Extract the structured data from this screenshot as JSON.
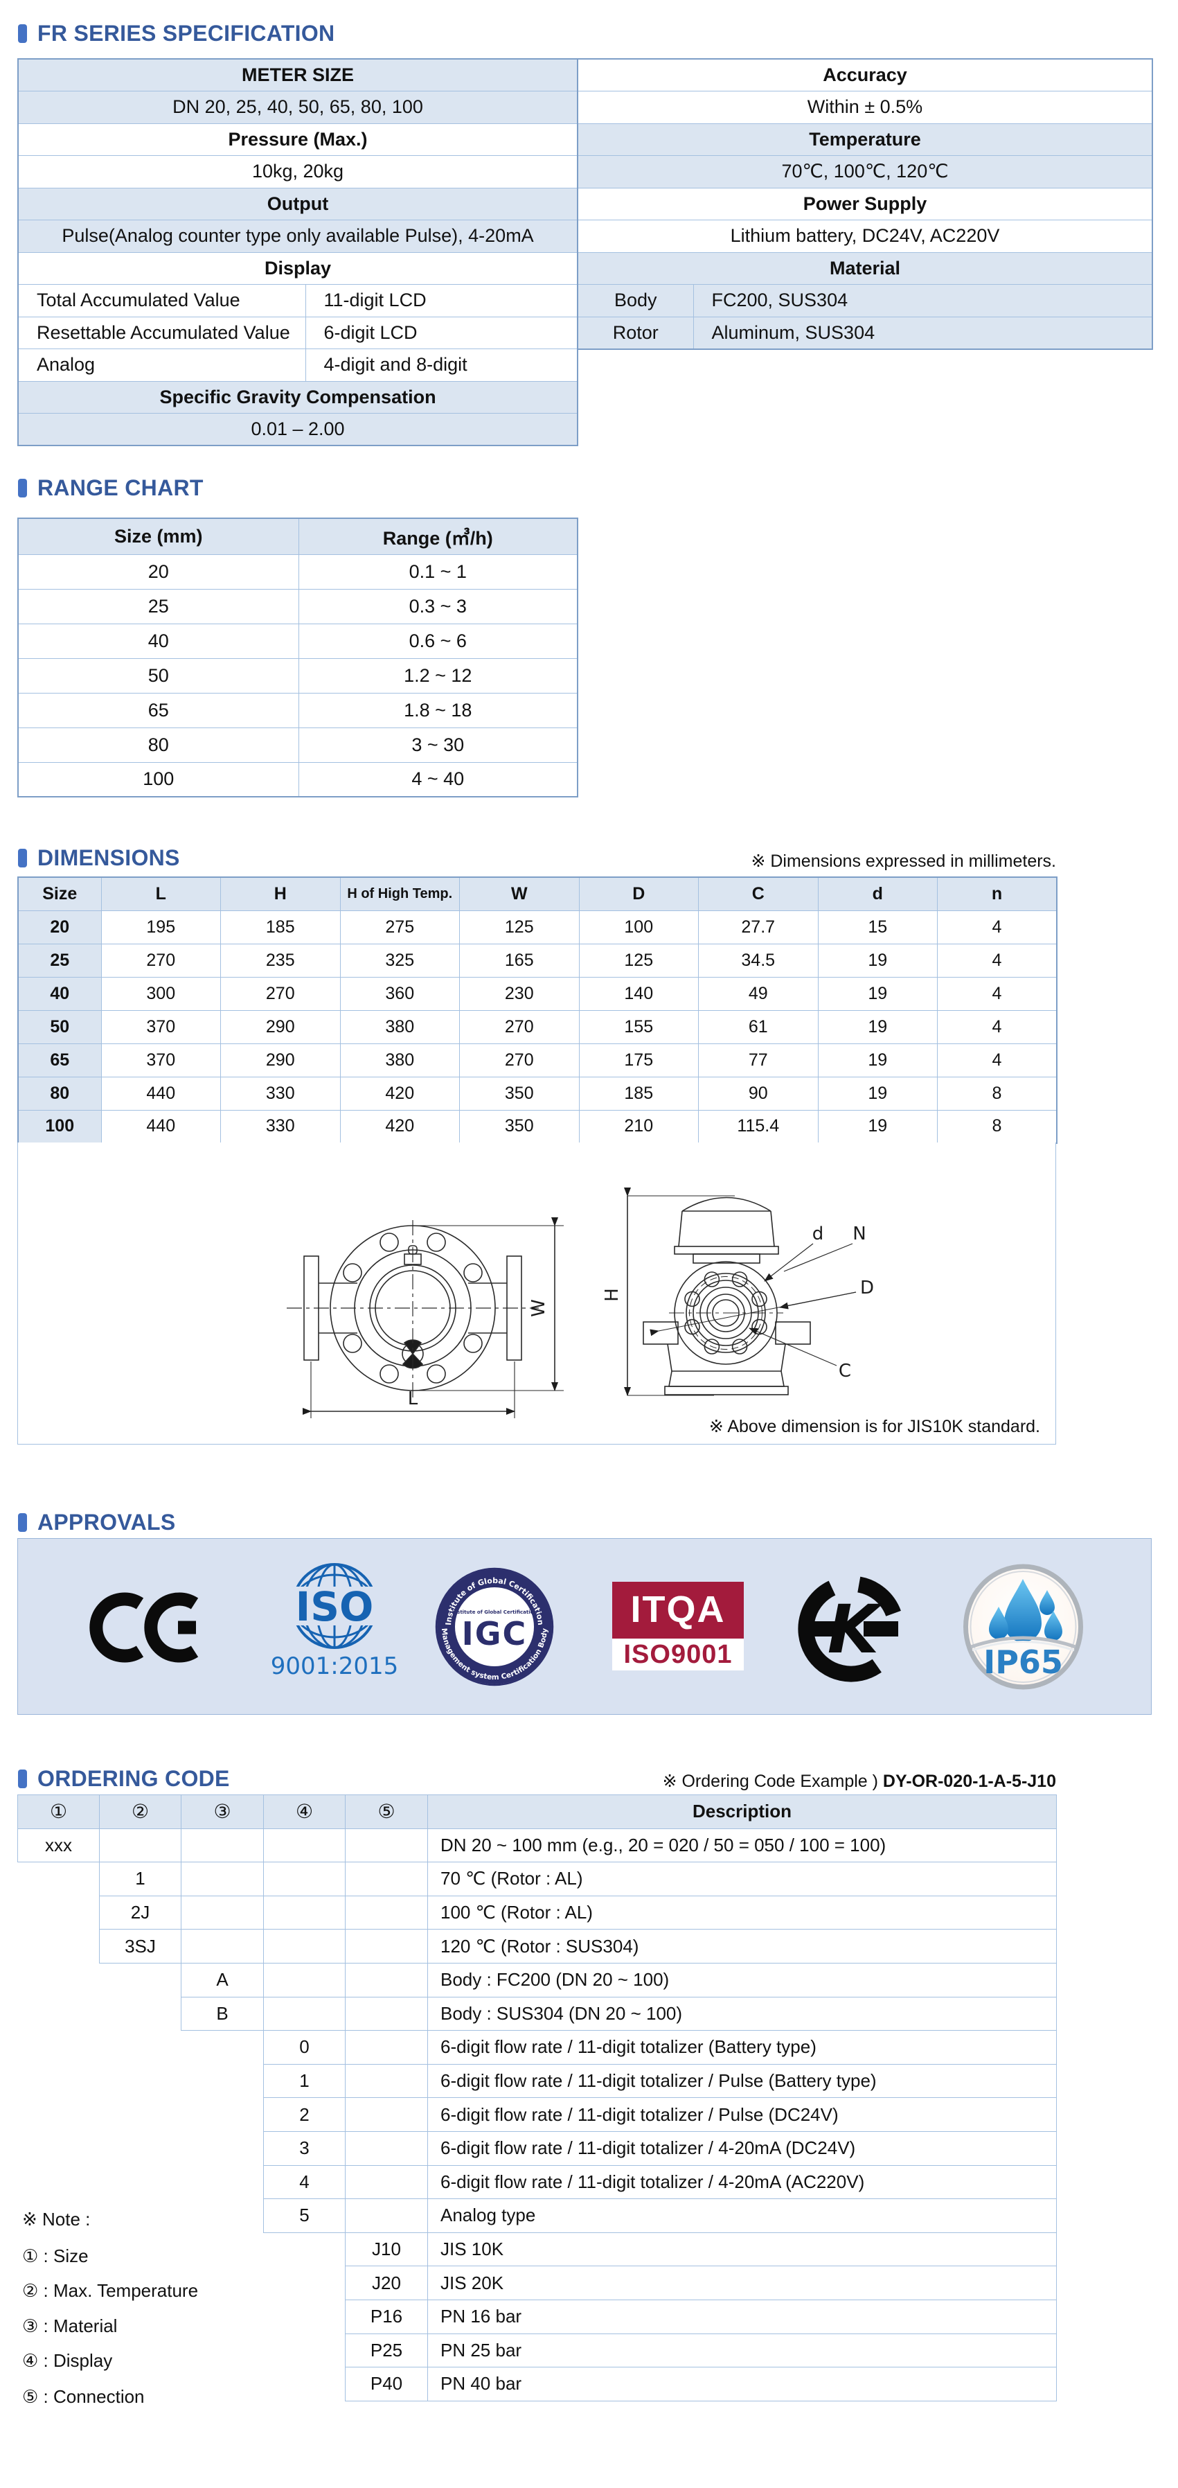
{
  "colors": {
    "accent_title": "#35599b",
    "bullet": "#4472c4",
    "row_blue": "#dbe5f1",
    "grid_border": "#a4c0e0",
    "table_outline": "#7d9ec7",
    "approvals_panel": "#d9e2f1",
    "itqa_red": "#a31b3c",
    "igc_navy": "#2c2f6d",
    "iso_blue": "#1663b2",
    "ip65_blue": "#2b80c4",
    "ce_black": "#0b0b0b"
  },
  "spec": {
    "title": "FR SERIES SPECIFICATION",
    "left_rows": [
      {
        "fill": "blue",
        "cells": [
          {
            "text": "METER SIZE",
            "bold": true,
            "span": 2
          }
        ]
      },
      {
        "fill": "blue",
        "cells": [
          {
            "text": "DN 20, 25, 40, 50, 65, 80, 100",
            "span": 2
          }
        ]
      },
      {
        "fill": "white",
        "cells": [
          {
            "text": "Pressure (Max.)",
            "bold": true,
            "span": 2
          }
        ]
      },
      {
        "fill": "white",
        "cells": [
          {
            "text": "10kg, 20kg",
            "span": 2
          }
        ]
      },
      {
        "fill": "blue",
        "cells": [
          {
            "text": "Output",
            "bold": true,
            "span": 2
          }
        ]
      },
      {
        "fill": "blue",
        "cells": [
          {
            "text": "Pulse(Analog counter type only available Pulse), 4-20mA",
            "span": 2
          }
        ]
      },
      {
        "fill": "white",
        "cells": [
          {
            "text": "Display",
            "bold": true,
            "span": 2
          }
        ]
      },
      {
        "fill": "white",
        "cells": [
          {
            "text": "Total Accumulated Value",
            "align": "left"
          },
          {
            "text": "11-digit LCD",
            "align": "left"
          }
        ]
      },
      {
        "fill": "white",
        "cells": [
          {
            "text": "Resettable Accumulated Value",
            "align": "left"
          },
          {
            "text": "6-digit LCD",
            "align": "left"
          }
        ]
      },
      {
        "fill": "white",
        "cells": [
          {
            "text": "Analog",
            "align": "left"
          },
          {
            "text": "4-digit and 8-digit",
            "align": "left"
          }
        ]
      },
      {
        "fill": "blue",
        "cells": [
          {
            "text": "Specific Gravity Compensation",
            "bold": true,
            "span": 2
          }
        ]
      },
      {
        "fill": "blue",
        "cells": [
          {
            "text": "0.01 – 2.00",
            "span": 2
          }
        ]
      }
    ],
    "right_rows": [
      {
        "fill": "white",
        "cells": [
          {
            "text": "Accuracy",
            "bold": true,
            "span": 2
          }
        ]
      },
      {
        "fill": "white",
        "cells": [
          {
            "text": "Within ± 0.5%",
            "span": 2
          }
        ]
      },
      {
        "fill": "blue",
        "cells": [
          {
            "text": "Temperature",
            "bold": true,
            "span": 2
          }
        ]
      },
      {
        "fill": "blue",
        "cells": [
          {
            "text": "70℃, 100℃, 120℃",
            "span": 2
          }
        ]
      },
      {
        "fill": "white",
        "cells": [
          {
            "text": "Power Supply",
            "bold": true,
            "span": 2
          }
        ]
      },
      {
        "fill": "white",
        "cells": [
          {
            "text": "Lithium battery, DC24V, AC220V",
            "span": 2
          }
        ]
      },
      {
        "fill": "blue",
        "cells": [
          {
            "text": "Material",
            "bold": true,
            "span": 2
          }
        ]
      },
      {
        "fill": "blue",
        "cells": [
          {
            "text": "Body"
          },
          {
            "text": "FC200, SUS304",
            "align": "left"
          }
        ]
      },
      {
        "fill": "blue",
        "cells": [
          {
            "text": "Rotor"
          },
          {
            "text": "Aluminum, SUS304",
            "align": "left"
          }
        ]
      }
    ]
  },
  "range": {
    "title": "RANGE CHART",
    "headers": [
      "Size (mm)",
      "Range (㎥/h)"
    ],
    "rows": [
      [
        "20",
        "0.1 ~ 1"
      ],
      [
        "25",
        "0.3 ~ 3"
      ],
      [
        "40",
        "0.6 ~ 6"
      ],
      [
        "50",
        "1.2 ~ 12"
      ],
      [
        "65",
        "1.8 ~ 18"
      ],
      [
        "80",
        "3 ~ 30"
      ],
      [
        "100",
        "4 ~ 40"
      ]
    ]
  },
  "dimensions": {
    "title": "DIMENSIONS",
    "note": "※ Dimensions expressed in millimeters.",
    "headers": [
      "Size",
      "L",
      "H",
      "H of High Temp.",
      "W",
      "D",
      "C",
      "d",
      "n"
    ],
    "rows": [
      [
        "20",
        "195",
        "185",
        "275",
        "125",
        "100",
        "27.7",
        "15",
        "4"
      ],
      [
        "25",
        "270",
        "235",
        "325",
        "165",
        "125",
        "34.5",
        "19",
        "4"
      ],
      [
        "40",
        "300",
        "270",
        "360",
        "230",
        "140",
        "49",
        "19",
        "4"
      ],
      [
        "50",
        "370",
        "290",
        "380",
        "270",
        "155",
        "61",
        "19",
        "4"
      ],
      [
        "65",
        "370",
        "290",
        "380",
        "270",
        "175",
        "77",
        "19",
        "4"
      ],
      [
        "80",
        "440",
        "330",
        "420",
        "350",
        "185",
        "90",
        "19",
        "8"
      ],
      [
        "100",
        "440",
        "330",
        "420",
        "350",
        "210",
        "115.4",
        "19",
        "8"
      ]
    ],
    "diagram_note": "※ Above dimension is for JIS10K standard.",
    "diagram_labels": {
      "W": "W",
      "L": "L",
      "H": "H",
      "d": "d",
      "N": "N",
      "D": "D",
      "C": "C"
    }
  },
  "approvals": {
    "title": "APPROVALS",
    "logos": {
      "ce": {
        "label": "CE"
      },
      "iso": {
        "text": "ISO",
        "year": "9001:2015"
      },
      "igc": {
        "ring_top": "Institute of Global Certification",
        "ring_bottom": "Management system Certification Body",
        "center_small": "Institute of Global Certification",
        "center": "IGC"
      },
      "itqa": {
        "line1": "ITQA",
        "line2": "ISO9001"
      },
      "k": {
        "letter": "K"
      },
      "ip65": {
        "label": "IP65"
      }
    }
  },
  "ordering": {
    "title": "ORDERING CODE",
    "example_prefix": "※ Ordering Code Example ) ",
    "example_code": "DY-OR-020-1-A-5-J10",
    "headers": [
      "①",
      "②",
      "③",
      "④",
      "⑤",
      "Description"
    ],
    "rows": [
      {
        "col": 1,
        "code": "xxx",
        "desc": "DN 20 ~ 100 mm (e.g., 20 = 020 / 50 = 050 / 100 = 100)"
      },
      {
        "col": 2,
        "code": "1",
        "desc": "70 ℃ (Rotor : AL)"
      },
      {
        "col": 2,
        "code": "2J",
        "desc": "100 ℃ (Rotor : AL)"
      },
      {
        "col": 2,
        "code": "3SJ",
        "desc": "120 ℃ (Rotor : SUS304)"
      },
      {
        "col": 3,
        "code": "A",
        "desc": "Body : FC200 (DN 20 ~ 100)"
      },
      {
        "col": 3,
        "code": "B",
        "desc": "Body : SUS304 (DN 20 ~ 100)"
      },
      {
        "col": 4,
        "code": "0",
        "desc": "6-digit flow rate / 11-digit totalizer (Battery type)"
      },
      {
        "col": 4,
        "code": "1",
        "desc": "6-digit flow rate / 11-digit totalizer / Pulse (Battery type)"
      },
      {
        "col": 4,
        "code": "2",
        "desc": "6-digit flow rate / 11-digit totalizer / Pulse (DC24V)"
      },
      {
        "col": 4,
        "code": "3",
        "desc": "6-digit flow rate / 11-digit totalizer / 4-20mA (DC24V)"
      },
      {
        "col": 4,
        "code": "4",
        "desc": "6-digit flow rate / 11-digit totalizer / 4-20mA (AC220V)"
      },
      {
        "col": 4,
        "code": "5",
        "desc": "Analog type"
      },
      {
        "col": 5,
        "code": "J10",
        "desc": "JIS 10K"
      },
      {
        "col": 5,
        "code": "J20",
        "desc": "JIS 20K"
      },
      {
        "col": 5,
        "code": "P16",
        "desc": "PN 16 bar"
      },
      {
        "col": 5,
        "code": "P25",
        "desc": "PN 25 bar"
      },
      {
        "col": 5,
        "code": "P40",
        "desc": "PN 40 bar"
      }
    ],
    "notes": [
      "※ Note :",
      "① : Size",
      "② : Max. Temperature",
      "③ : Material",
      "④ : Display",
      "⑤ : Connection"
    ]
  }
}
